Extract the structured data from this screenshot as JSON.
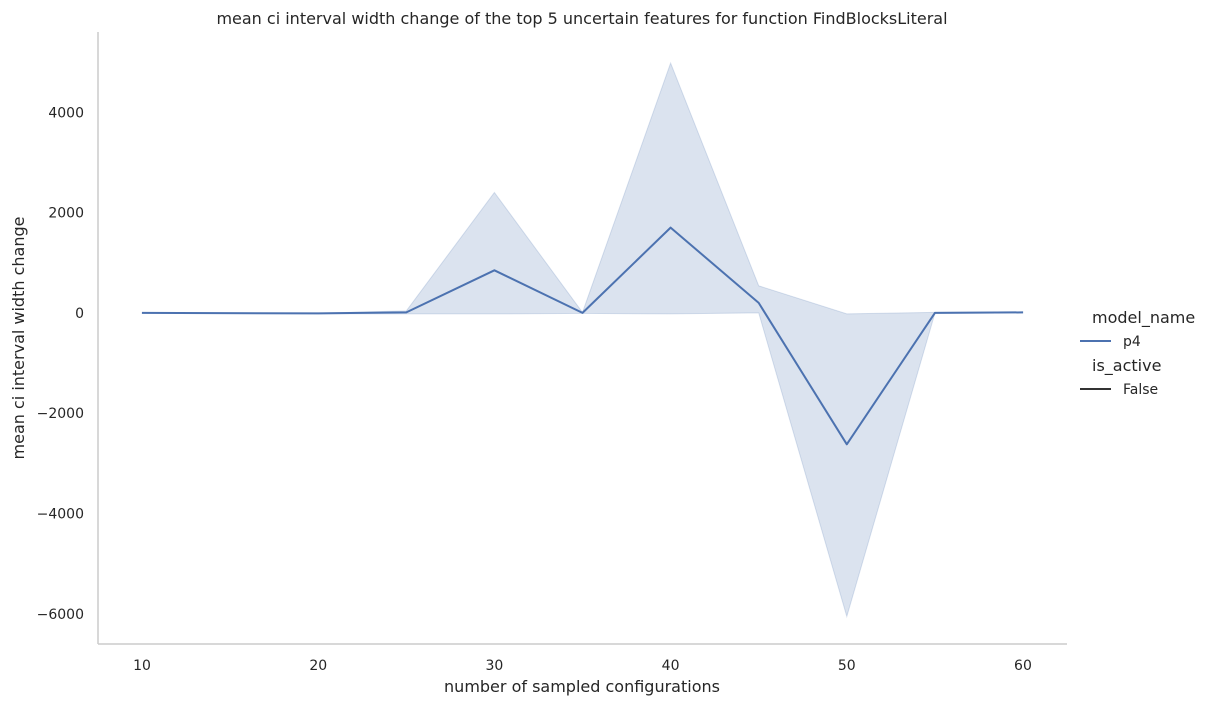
{
  "chart_data": {
    "type": "line",
    "title": "mean ci interval width change of the top 5 uncertain features for function FindBlocksLiteral",
    "xlabel": "number of sampled configurations",
    "ylabel": "mean ci interval width change",
    "xlim": [
      7.5,
      62.5
    ],
    "ylim": [
      -6600,
      5600
    ],
    "xticks": [
      10,
      20,
      30,
      40,
      50,
      60
    ],
    "xtick_labels": [
      "10",
      "20",
      "30",
      "40",
      "50",
      "60"
    ],
    "yticks": [
      -6000,
      -4000,
      -2000,
      0,
      2000,
      4000
    ],
    "ytick_labels": [
      "−6000",
      "−4000",
      "−2000",
      "0",
      "2000",
      "4000"
    ],
    "grid": false,
    "legend": {
      "placement": "right",
      "hue_title": "model_name",
      "hue_entries": [
        {
          "label": "p4",
          "color": "#4c72b0"
        }
      ],
      "style_title": "is_active",
      "style_entries": [
        {
          "label": "False",
          "color": "#333333"
        }
      ]
    },
    "series": [
      {
        "name": "p4",
        "color": "#4c72b0",
        "x": [
          10,
          20,
          25,
          30,
          35,
          40,
          45,
          50,
          55,
          60
        ],
        "y": [
          0,
          -10,
          10,
          850,
          0,
          1700,
          200,
          -2620,
          0,
          10
        ],
        "ci_low": [
          -5,
          -15,
          -20,
          -20,
          -10,
          -20,
          0,
          -6050,
          -10,
          0
        ],
        "ci_high": [
          5,
          -5,
          40,
          2400,
          10,
          4980,
          540,
          -20,
          10,
          20
        ]
      }
    ]
  }
}
